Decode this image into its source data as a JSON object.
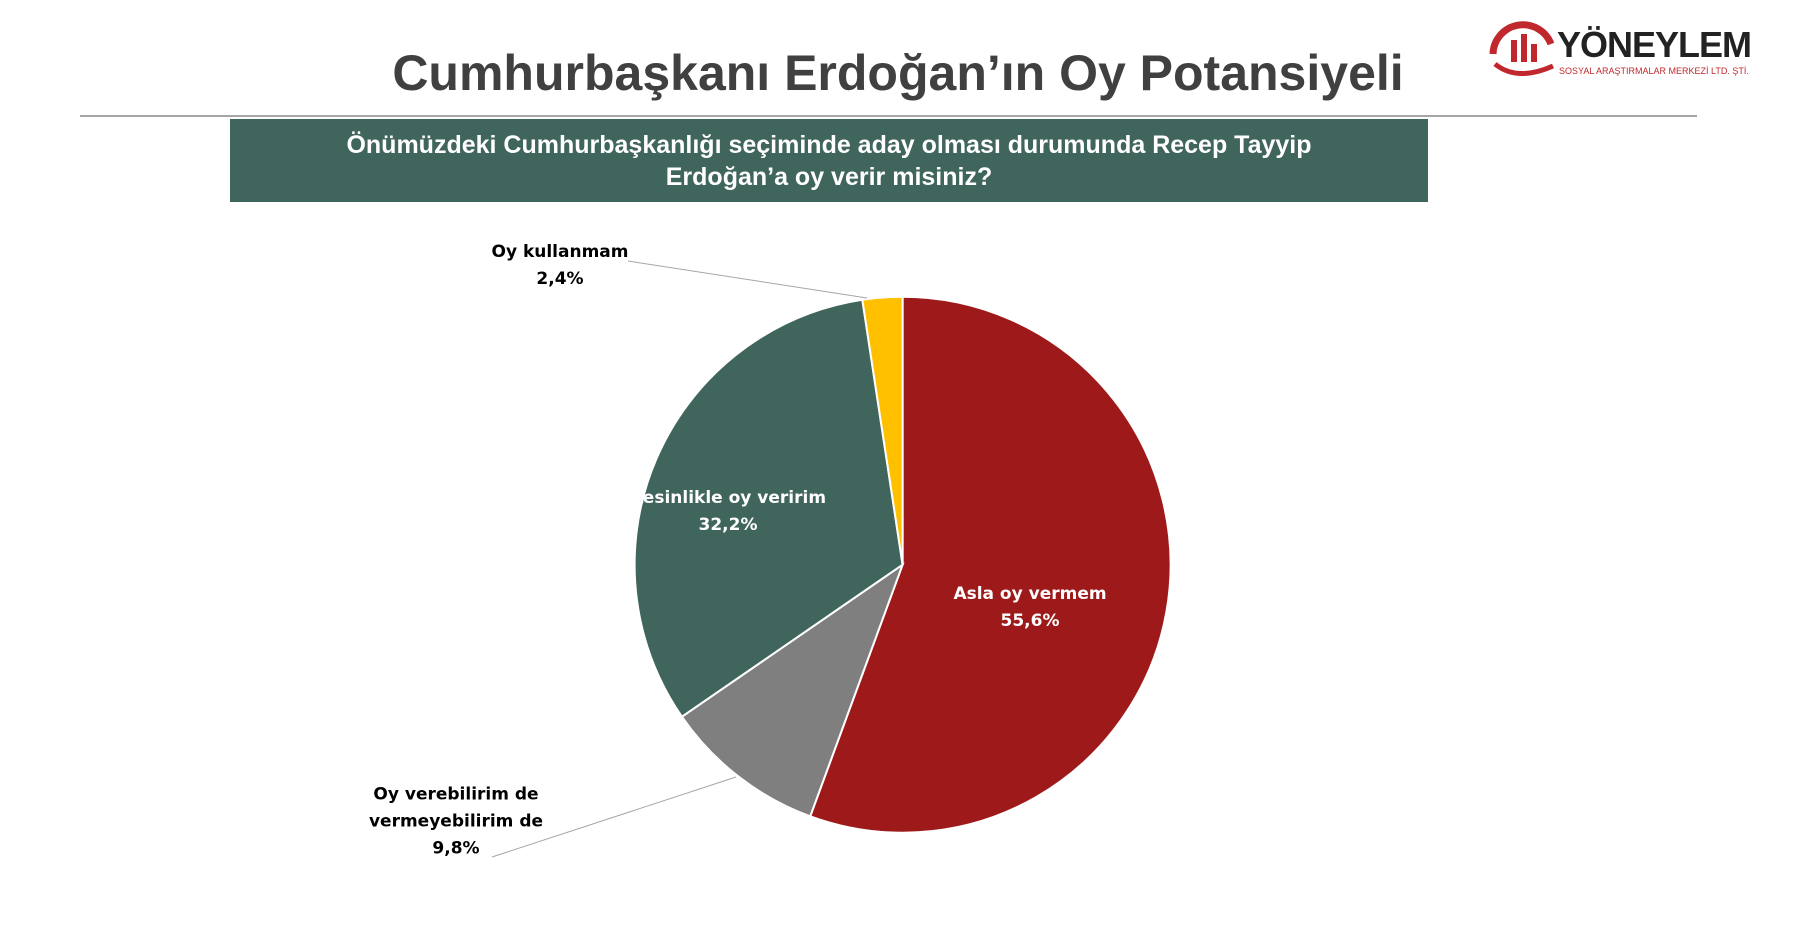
{
  "header": {
    "title": "Cumhurbaşkanı Erdoğan’ın Oy Potansiyeli",
    "logo_name": "YÖNEYLEM",
    "logo_subtitle": "SOSYAL ARAŞTIRMALAR MERKEZİ LTD. ŞTİ."
  },
  "chart_data": {
    "type": "pie",
    "title": "Önümüzdeki Cumhurbaşkanlığı seçiminde aday olması durumunda Recep Tayyip Erdoğan’a oy verir misiniz?",
    "categories": [
      "Asla oy vermem",
      "Oy verebilirim de vermeyebilirim de",
      "Kesinlikle oy veririm",
      "Oy kullanmam"
    ],
    "values": [
      55.6,
      9.8,
      32.2,
      2.4
    ],
    "value_labels": [
      "55,6%",
      "9,8%",
      "32,2%",
      "2,4%"
    ],
    "colors": [
      "#9e1a1a",
      "#7f7f7f",
      "#40655c",
      "#ffc000"
    ]
  }
}
